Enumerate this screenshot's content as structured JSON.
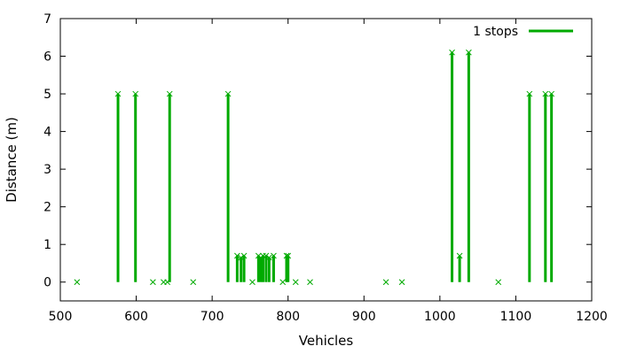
{
  "chart_data": {
    "type": "impulse",
    "xlabel": "Vehicles",
    "ylabel": "Distance (m)",
    "xlim": [
      500,
      1200
    ],
    "ylim": [
      -0.5,
      7
    ],
    "xticks": [
      500,
      600,
      700,
      800,
      900,
      1000,
      1100,
      1200
    ],
    "yticks": [
      0,
      1,
      2,
      3,
      4,
      5,
      6,
      7
    ],
    "legend_position": "top-right",
    "color": "#00aa00",
    "series": [
      {
        "name": "1 stops",
        "points": [
          [
            522,
            0
          ],
          [
            576,
            5
          ],
          [
            599,
            5
          ],
          [
            622,
            0
          ],
          [
            636,
            0
          ],
          [
            641,
            0
          ],
          [
            644,
            5
          ],
          [
            675,
            0
          ],
          [
            721,
            5
          ],
          [
            733,
            0.7
          ],
          [
            738,
            0.65
          ],
          [
            742,
            0.7
          ],
          [
            753,
            0
          ],
          [
            761,
            0.7
          ],
          [
            764,
            0.65
          ],
          [
            767,
            0.7
          ],
          [
            771,
            0.7
          ],
          [
            775,
            0.65
          ],
          [
            781,
            0.7
          ],
          [
            793,
            0
          ],
          [
            798,
            0.7
          ],
          [
            800,
            0.7
          ],
          [
            810,
            0
          ],
          [
            829,
            0
          ],
          [
            929,
            0
          ],
          [
            950,
            0
          ],
          [
            1016,
            6.1
          ],
          [
            1026,
            0.7
          ],
          [
            1038,
            6.1
          ],
          [
            1077,
            0
          ],
          [
            1118,
            5
          ],
          [
            1139,
            5
          ],
          [
            1147,
            5
          ]
        ]
      }
    ]
  }
}
